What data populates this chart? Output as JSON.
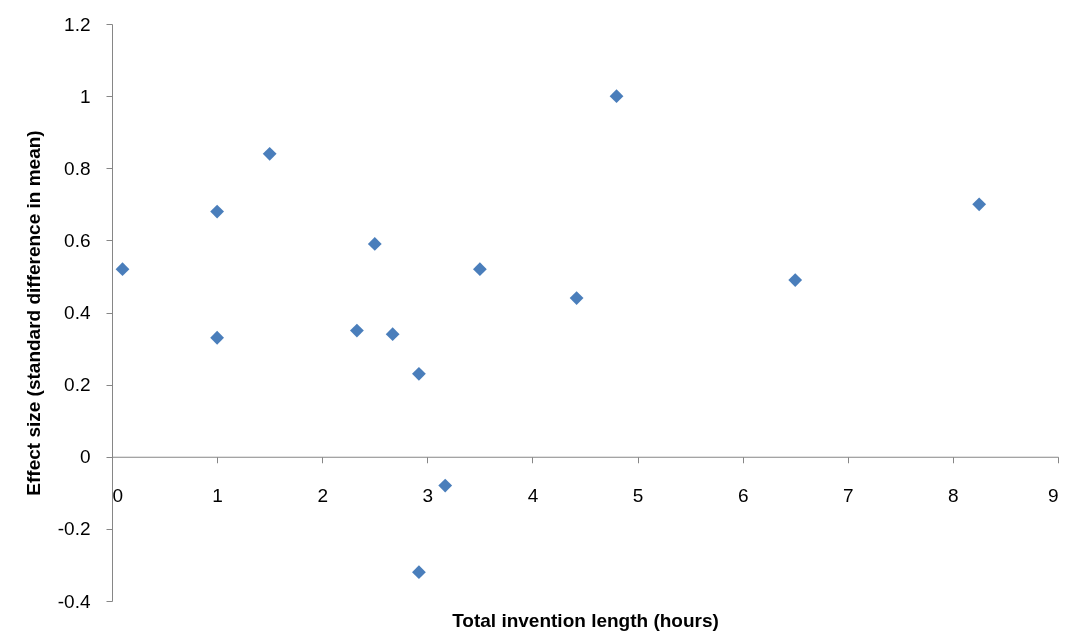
{
  "chart_data": {
    "type": "scatter",
    "xlabel": "Total invention length (hours)",
    "ylabel": "Effect size (standard difference in mean)",
    "x": [
      0.1,
      1.0,
      1.0,
      1.5,
      2.33,
      2.5,
      2.67,
      2.92,
      2.92,
      3.17,
      3.5,
      4.42,
      4.8,
      6.5,
      8.25
    ],
    "series": [
      {
        "color": "#4a7ebb",
        "values": [
          0.52,
          0.68,
          0.33,
          0.84,
          0.35,
          0.59,
          0.34,
          0.23,
          -0.32,
          -0.08,
          0.52,
          0.44,
          1.0,
          0.49,
          0.7
        ]
      }
    ],
    "xlim": [
      0,
      9
    ],
    "xticks": [
      0,
      1,
      2,
      3,
      4,
      5,
      6,
      7,
      8,
      9
    ],
    "ylim": [
      -0.4,
      1.2
    ],
    "yticks": [
      -0.4,
      -0.2,
      0,
      0.2,
      0.4,
      0.6,
      0.8,
      1,
      1.2
    ],
    "marker": "diamond",
    "grid": false
  }
}
